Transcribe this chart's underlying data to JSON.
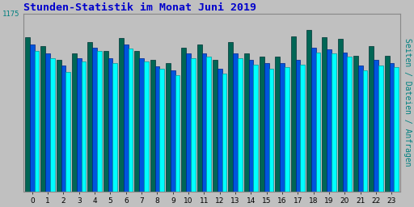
{
  "title": "Stunden-Statistik im Monat Juni 2019",
  "title_color": "#0000cc",
  "title_fontsize": 9.5,
  "ylabel_right": "Seiten / Dateien / Anfragen",
  "ylabel_right_color": "#008080",
  "ylabel_right_fontsize": 7,
  "background_color": "#c0c0c0",
  "plot_bg_color": "#c0c0c0",
  "xtick_labels": [
    "0",
    "1",
    "2",
    "3",
    "4",
    "5",
    "6",
    "7",
    "8",
    "9",
    "10",
    "11",
    "12",
    "13",
    "14",
    "15",
    "16",
    "17",
    "18",
    "19",
    "20",
    "21",
    "22",
    "23"
  ],
  "ytick_val": 1175,
  "ytick_color": "#008080",
  "grid_color": "#aaaaaa",
  "bar_width": 0.3,
  "color_green": "#006655",
  "color_blue": "#0055dd",
  "color_cyan": "#00ffff",
  "edge_green": "#003333",
  "edge_blue": "#002288",
  "edge_cyan": "#009999",
  "series_green": [
    1020,
    960,
    870,
    910,
    985,
    930,
    1015,
    930,
    870,
    850,
    950,
    970,
    870,
    990,
    910,
    890,
    890,
    1025,
    1070,
    1020,
    1010,
    895,
    960,
    895
  ],
  "series_blue": [
    970,
    910,
    830,
    880,
    950,
    880,
    970,
    880,
    825,
    800,
    910,
    910,
    810,
    910,
    870,
    850,
    850,
    870,
    950,
    940,
    920,
    830,
    870,
    850
  ],
  "series_cyan": [
    930,
    880,
    790,
    860,
    930,
    850,
    945,
    860,
    810,
    770,
    880,
    890,
    780,
    880,
    840,
    810,
    820,
    840,
    920,
    910,
    890,
    800,
    830,
    820
  ],
  "ylim_max": 1175,
  "ylim_min": 0
}
